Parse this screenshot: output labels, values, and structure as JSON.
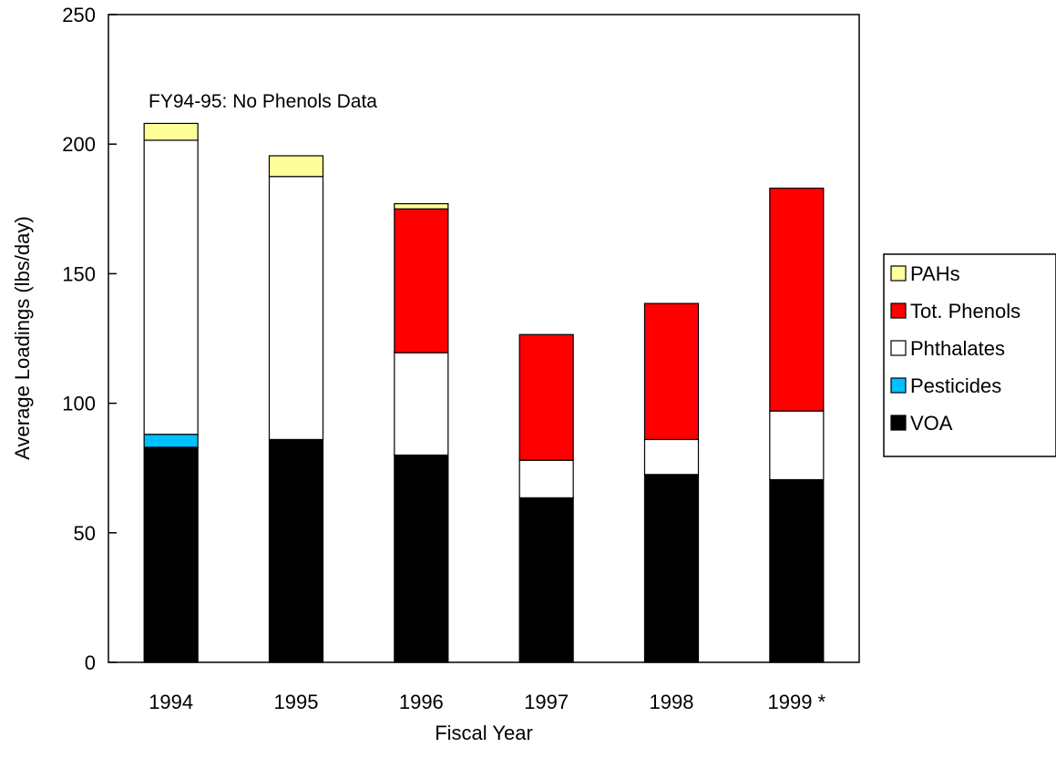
{
  "chart_data": {
    "type": "bar",
    "stacked": true,
    "title": "",
    "xlabel": "Fiscal Year",
    "ylabel": "Average Loadings (lbs/day)",
    "ylim": [
      0,
      250
    ],
    "yticks": [
      "0",
      "50",
      "100",
      "150",
      "200",
      "250"
    ],
    "grid": false,
    "legend_position": "right",
    "categories": [
      "1994",
      "1995",
      "1996",
      "1997",
      "1998",
      "1999 *"
    ],
    "series": [
      {
        "name": "VOA",
        "color": "#000000",
        "values": [
          83,
          86,
          80,
          63.5,
          72.5,
          70.5
        ]
      },
      {
        "name": "Pesticides",
        "color": "#00bfff",
        "values": [
          5,
          0,
          0,
          0,
          0,
          0
        ]
      },
      {
        "name": "Phthalates",
        "color": "#ffffff",
        "values": [
          113.5,
          101.5,
          39.5,
          14.5,
          13.5,
          26.5
        ]
      },
      {
        "name": "Tot. Phenols",
        "color": "#ff0000",
        "values": [
          0,
          0,
          55.5,
          48.5,
          52.5,
          86
        ]
      },
      {
        "name": "PAHs",
        "color": "#ffff99",
        "values": [
          6.5,
          8,
          2,
          0,
          0,
          0
        ]
      }
    ],
    "legend_order": [
      "PAHs",
      "Tot. Phenols",
      "Phthalates",
      "Pesticides",
      "VOA"
    ],
    "annotation": "FY94-95: No Phenols Data"
  }
}
